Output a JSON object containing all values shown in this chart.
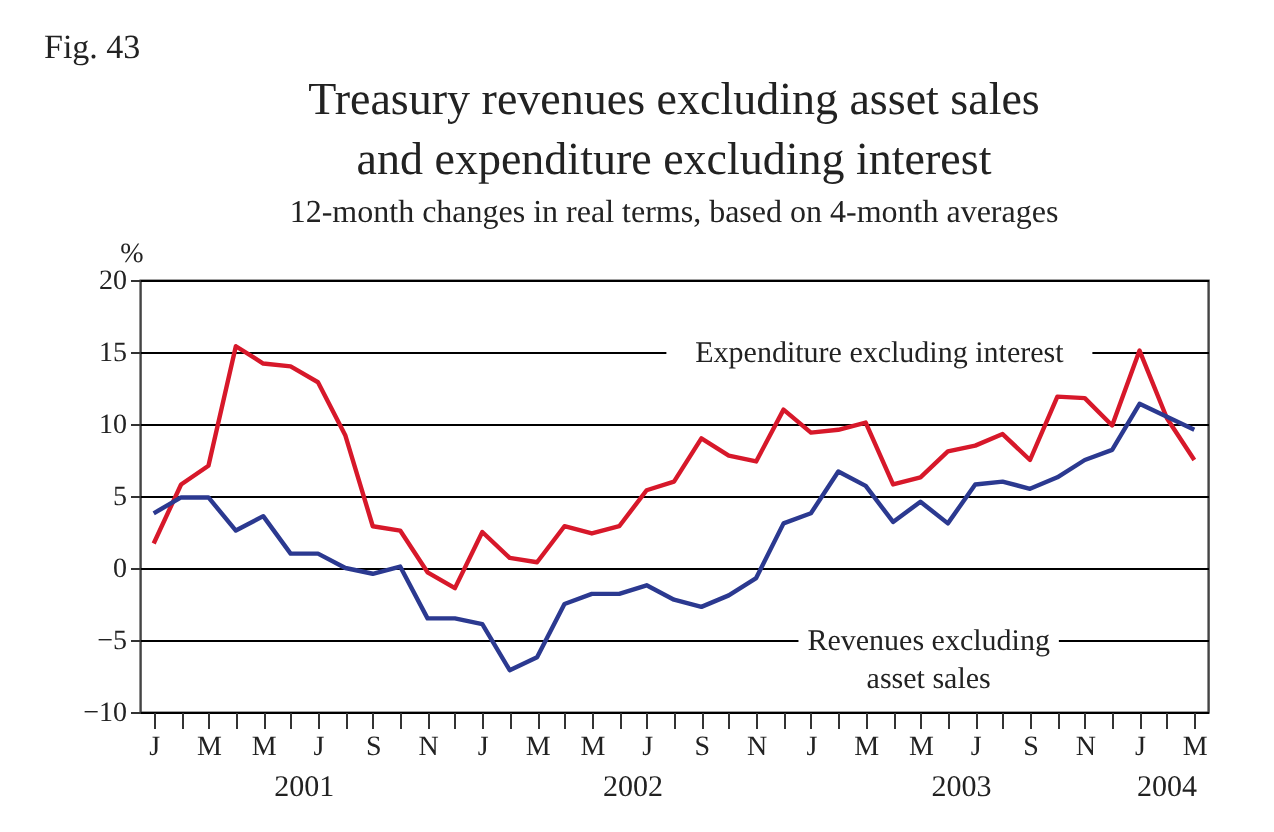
{
  "chart_data": {
    "type": "line",
    "title": [
      "Treasury revenues excluding asset sales",
      "and expenditure excluding interest"
    ],
    "subtitle": "12-month changes in real terms, based on 4-month averages",
    "ylabel": "%",
    "annotations": [
      "Fig. 43",
      "2001",
      "2002",
      "2003",
      "2004"
    ],
    "categories": [
      "J",
      null,
      "M",
      null,
      "M",
      null,
      "J",
      null,
      "S",
      null,
      "N",
      null,
      "J",
      null,
      "M",
      null,
      "M",
      null,
      "J",
      null,
      "S",
      null,
      "N",
      null,
      "J",
      null,
      "M",
      null,
      "M",
      null,
      "J",
      null,
      "S",
      null,
      "N",
      null,
      "J",
      null,
      "M"
    ],
    "series": [
      {
        "name": "Expenditure excluding interest",
        "color": "#d7182a",
        "values": [
          1.7,
          5.8,
          7.1,
          15.4,
          14.2,
          14,
          12.9,
          9.2,
          2.9,
          2.6,
          -0.3,
          -1.4,
          2.5,
          0.7,
          0.4,
          2.9,
          2.4,
          2.9,
          5.4,
          6,
          9,
          7.8,
          7.4,
          11,
          9.4,
          9.6,
          10.1,
          5.8,
          6.3,
          8.1,
          8.5,
          9.3,
          7.5,
          11.9,
          11.8,
          9.9,
          15.1,
          10.4,
          7.5
        ]
      },
      {
        "name": "Revenues excluding asset sales",
        "color": "#2b3990",
        "values": [
          3.8,
          4.9,
          4.9,
          2.6,
          3.6,
          1,
          1,
          0,
          -0.4,
          0.1,
          -3.5,
          -3.5,
          -3.9,
          -7.1,
          -6.2,
          -2.5,
          -1.8,
          -1.8,
          -1.2,
          -2.2,
          -2.7,
          -1.9,
          -0.7,
          3.1,
          3.8,
          6.7,
          5.7,
          3.2,
          4.6,
          3.1,
          5.8,
          6,
          5.5,
          6.3,
          7.5,
          8.2,
          11.4,
          10.5,
          9.6
        ]
      }
    ],
    "ylim": [
      -10,
      20
    ],
    "yticks": [
      -10,
      -5,
      0,
      5,
      10,
      15,
      20
    ],
    "grid": "y"
  }
}
